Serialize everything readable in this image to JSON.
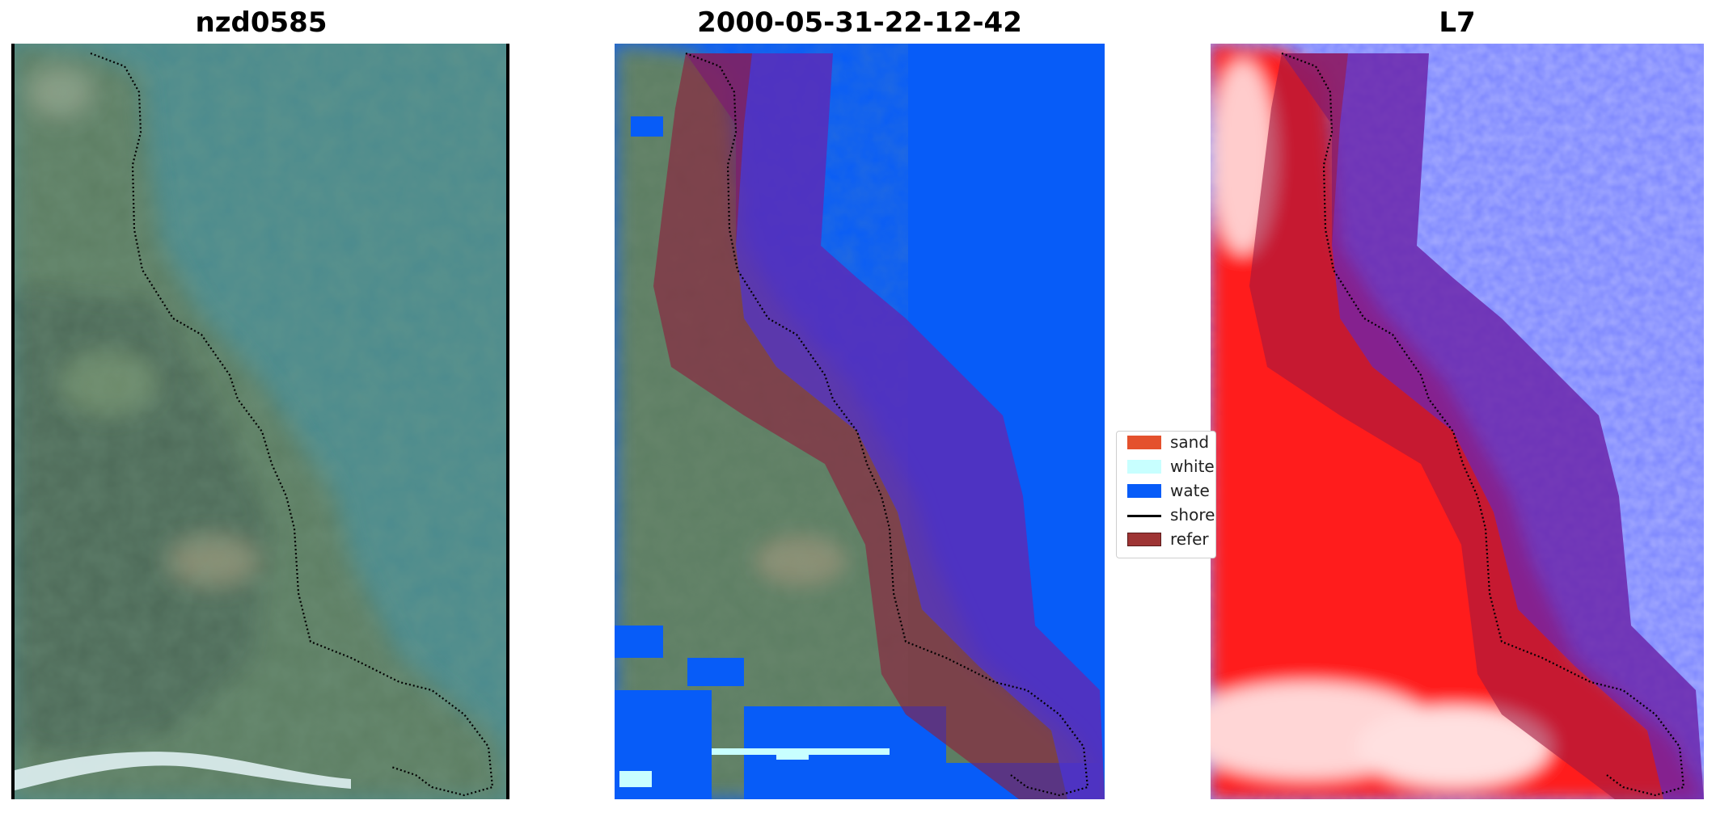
{
  "panels": [
    {
      "title": "nzd0585"
    },
    {
      "title": "2000-05-31-22-12-42"
    },
    {
      "title": "L7"
    }
  ],
  "legend": {
    "items": [
      {
        "label": "sand",
        "color": "#e4512d"
      },
      {
        "label": "white",
        "color": "#c8ffff"
      },
      {
        "label": "wate",
        "color": "#075cf8"
      },
      {
        "label": "shore",
        "color": "#000000"
      },
      {
        "label": "refer",
        "color": "#9e3434"
      }
    ]
  },
  "colors": {
    "water_class": "#075cf8",
    "reference_buffer": "#8e1d3c",
    "sea_rgb": "#4a8a8d",
    "land_rgb": "#5a7a62",
    "index_positive": "#ff1010",
    "index_negative": "#7a84ff"
  }
}
